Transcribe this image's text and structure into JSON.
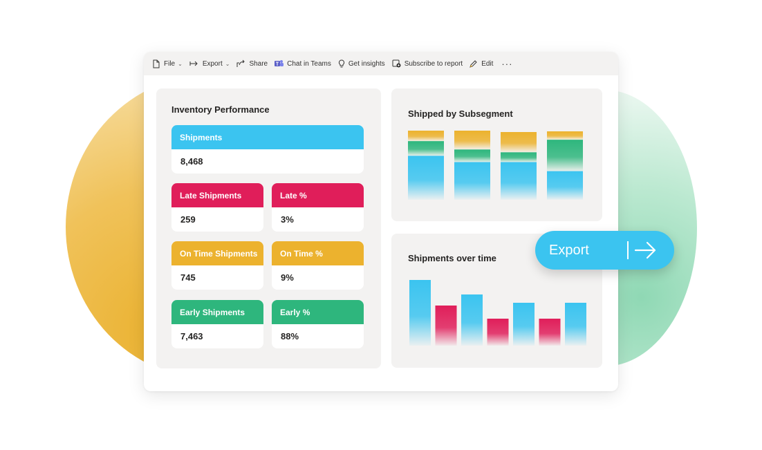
{
  "colors": {
    "accent_blue": "#3bc4f0",
    "accent_red": "#e01e5a",
    "accent_yellow": "#ecb22e",
    "accent_green": "#2eb67d",
    "panel_bg": "#f3f2f1"
  },
  "toolbar": {
    "items": [
      {
        "label": "File",
        "icon": "file-icon",
        "has_dropdown": true
      },
      {
        "label": "Export",
        "icon": "export-icon",
        "has_dropdown": true
      },
      {
        "label": "Share",
        "icon": "share-icon",
        "has_dropdown": false
      },
      {
        "label": "Chat in Teams",
        "icon": "teams-icon",
        "has_dropdown": false
      },
      {
        "label": "Get insights",
        "icon": "lightbulb-icon",
        "has_dropdown": false
      },
      {
        "label": "Subscribe to report",
        "icon": "subscribe-icon",
        "has_dropdown": false
      },
      {
        "label": "Edit",
        "icon": "pencil-icon",
        "has_dropdown": false
      }
    ],
    "more_label": "···"
  },
  "inventory": {
    "title": "Inventory Performance",
    "kpis": [
      {
        "label": "Shipments",
        "value": "8,468",
        "color": "#3bc4f0"
      },
      {
        "label": "Late Shipments",
        "value": "259",
        "color": "#e01e5a"
      },
      {
        "label": "Late %",
        "value": "3%",
        "color": "#e01e5a"
      },
      {
        "label": "On Time Shipments",
        "value": "745",
        "color": "#ecb22e"
      },
      {
        "label": "On Time %",
        "value": "9%",
        "color": "#ecb22e"
      },
      {
        "label": "Early Shipments",
        "value": "7,463",
        "color": "#2eb67d"
      },
      {
        "label": "Early %",
        "value": "88%",
        "color": "#2eb67d"
      }
    ]
  },
  "subsegment": {
    "title": "Shipped by Subsegment"
  },
  "overtime": {
    "title": "Shipments over time"
  },
  "export_button": {
    "label": "Export",
    "icon": "arrow-right-icon"
  },
  "chart_data": [
    {
      "type": "bar",
      "stacked": true,
      "title": "Shipped by Subsegment",
      "categories": [
        "",
        "",
        "",
        ""
      ],
      "series": [
        {
          "color": "#3bc4f0",
          "values": [
            63,
            54,
            54,
            41
          ]
        },
        {
          "color": "#2eb67d",
          "values": [
            21,
            18,
            14,
            45
          ]
        },
        {
          "color": "#ecb22e",
          "values": [
            15,
            27,
            29,
            12
          ]
        }
      ],
      "ylim": [
        0,
        100
      ],
      "grid": false,
      "legend": "none"
    },
    {
      "type": "bar",
      "title": "Shipments over time",
      "categories": [
        "",
        "",
        "",
        "",
        "",
        "",
        ""
      ],
      "values": [
        95,
        58,
        74,
        39,
        62,
        39,
        62
      ],
      "colors": [
        "#3bc4f0",
        "#e01e5a",
        "#3bc4f0",
        "#e01e5a",
        "#3bc4f0",
        "#e01e5a",
        "#3bc4f0"
      ],
      "ylim": [
        0,
        100
      ],
      "grid": false,
      "legend": "none"
    }
  ]
}
